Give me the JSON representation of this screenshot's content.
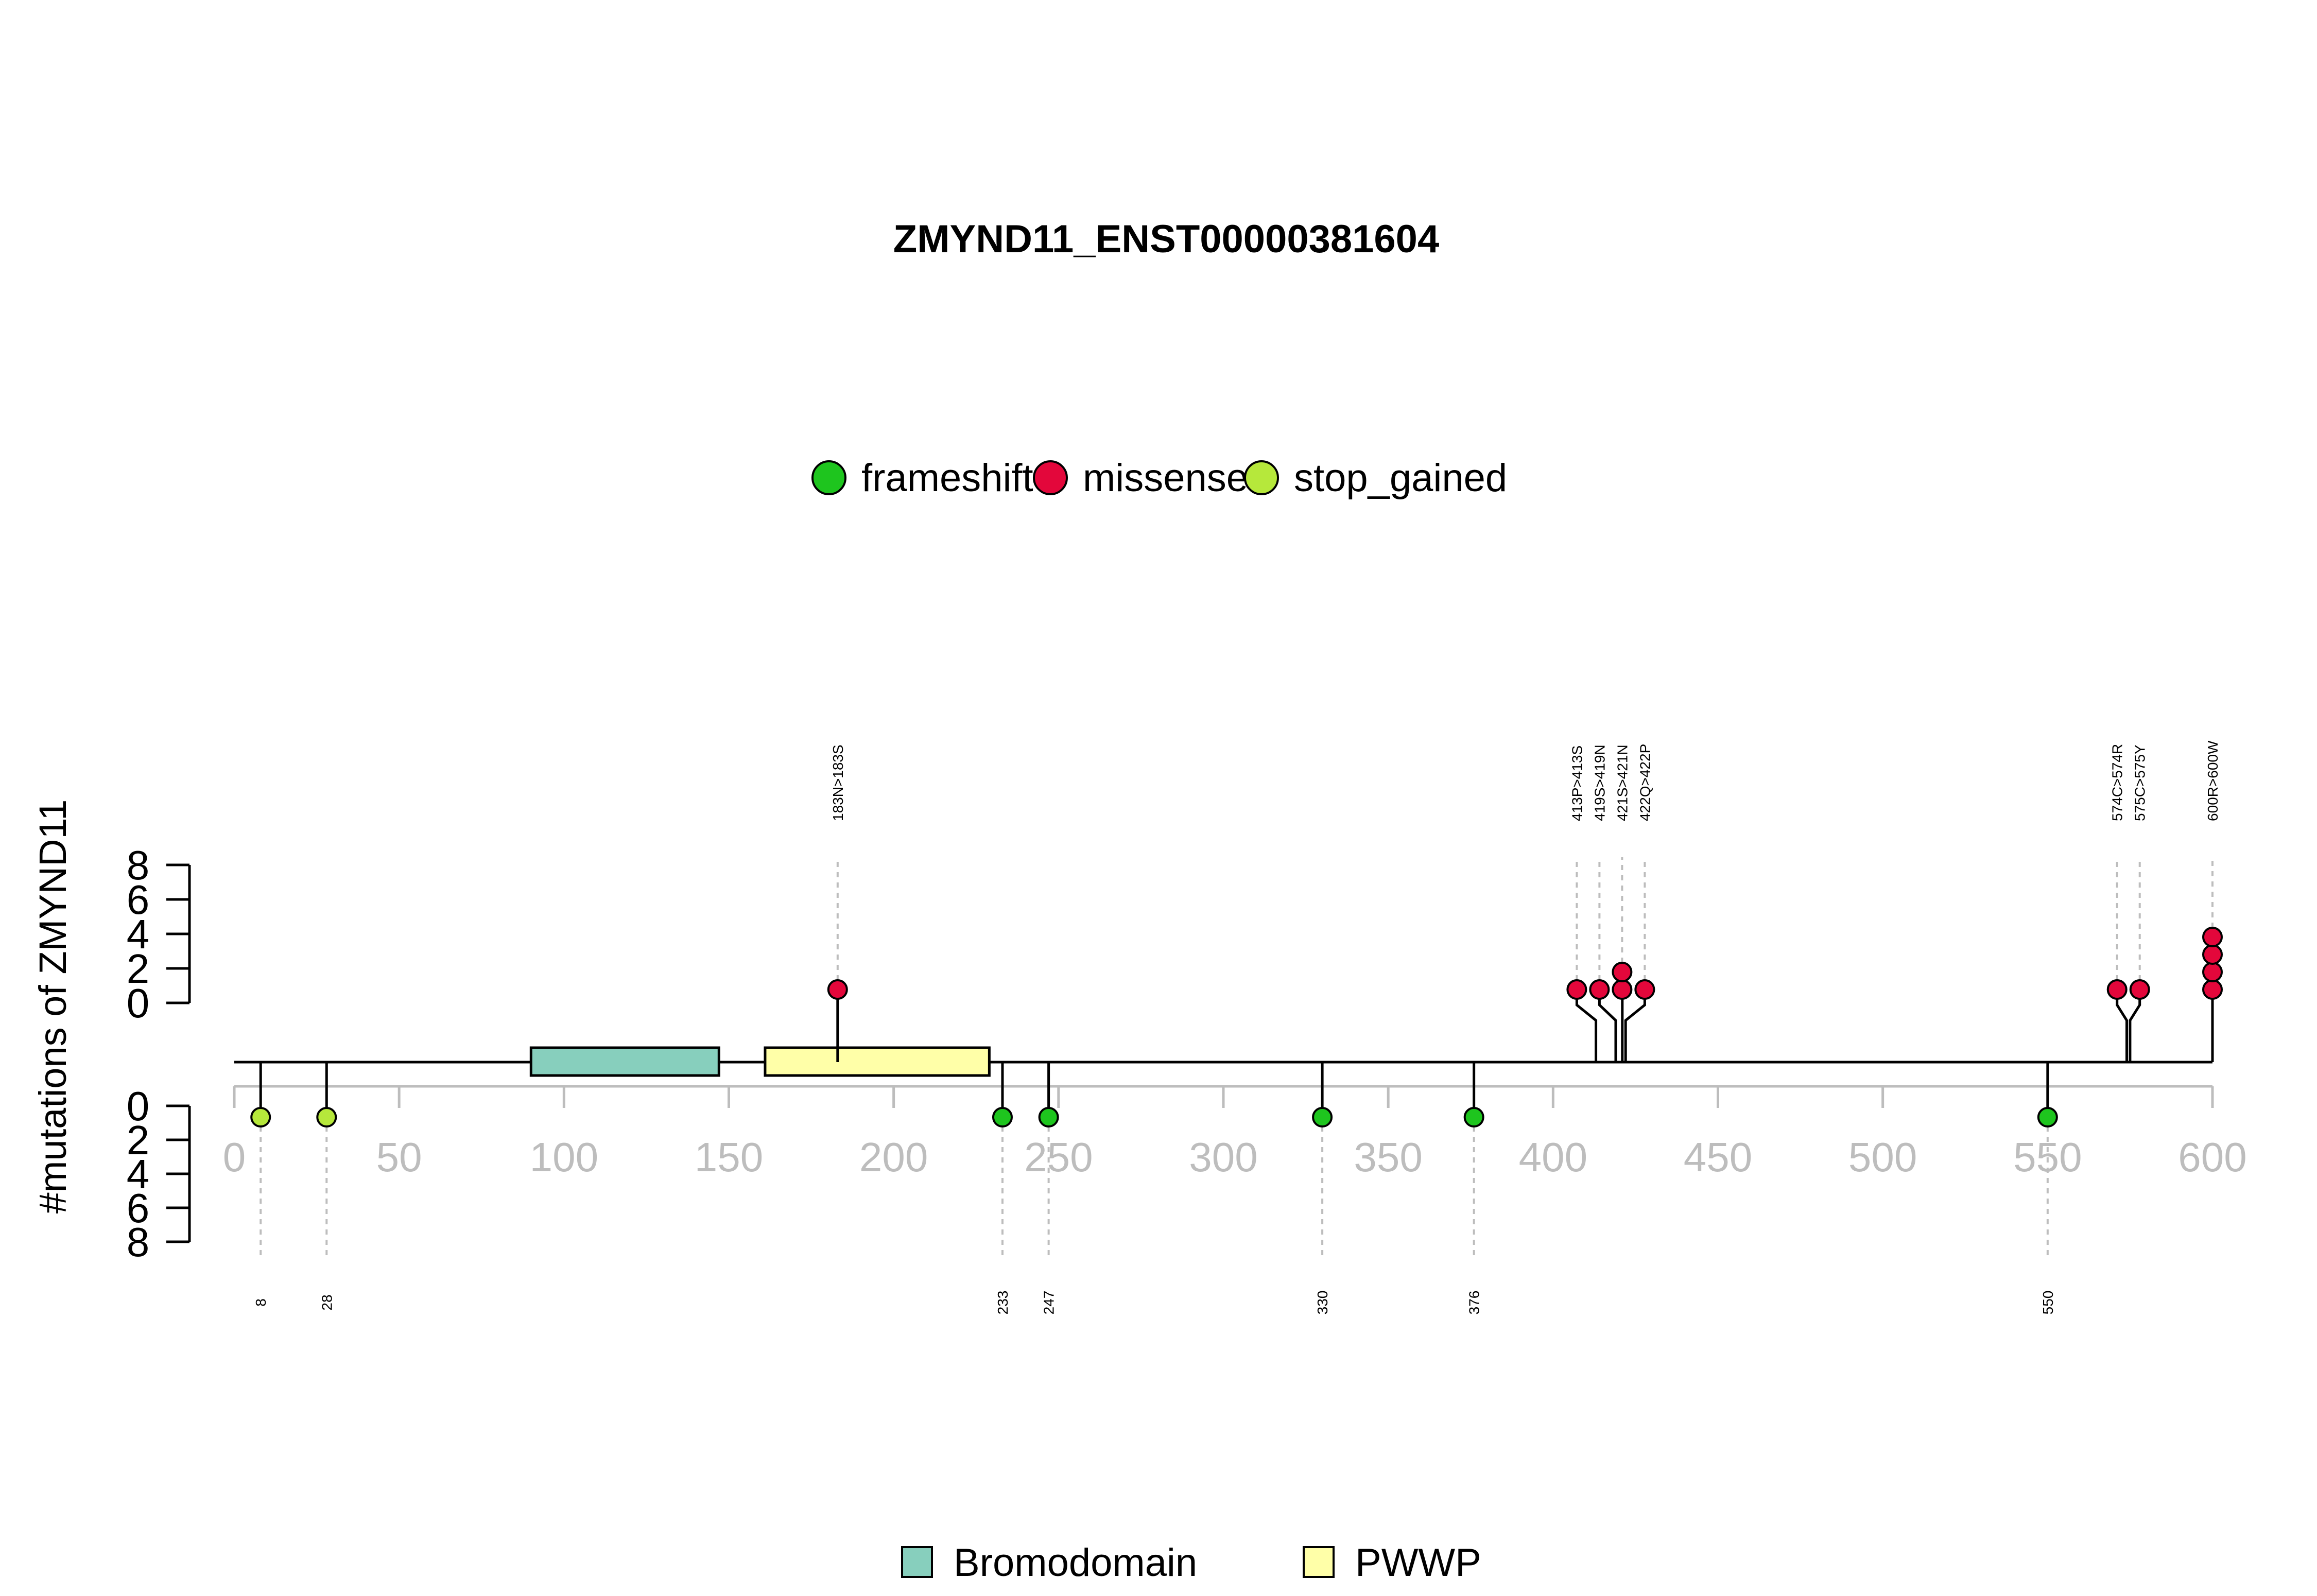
{
  "chart_data": {
    "type": "lollipop",
    "title": "ZMYND11_ENST00000381604",
    "ylabel": "#mutations of ZMYND11",
    "xlim": [
      0,
      600
    ],
    "x_ticks": [
      0,
      50,
      100,
      150,
      200,
      250,
      300,
      350,
      400,
      450,
      500,
      550,
      600
    ],
    "y_ticks_upper": [
      0,
      2,
      4,
      6,
      8
    ],
    "y_ticks_lower": [
      0,
      2,
      4,
      6,
      8
    ],
    "legend_top": {
      "placement": "top-center",
      "items": [
        {
          "name": "frameshift",
          "color": "#1ec51e"
        },
        {
          "name": "missense",
          "color": "#e3073b"
        },
        {
          "name": "stop_gained",
          "color": "#b6e83b"
        }
      ]
    },
    "legend_bottom": {
      "placement": "bottom-center",
      "items": [
        {
          "name": "Bromodomain",
          "color": "#87cfbd"
        },
        {
          "name": "PWWP",
          "color": "#ffffa8"
        }
      ]
    },
    "domains": [
      {
        "name": "Bromodomain",
        "start": 90,
        "end": 147,
        "color": "#87cfbd"
      },
      {
        "name": "PWWP",
        "start": 161,
        "end": 229,
        "color": "#ffffa8"
      }
    ],
    "upper_mutations": [
      {
        "label": "183N>183S",
        "position": 183,
        "count": 1,
        "type": "missense"
      },
      {
        "label": "413P>413S",
        "position": 413,
        "count": 1,
        "type": "missense"
      },
      {
        "label": "419S>419N",
        "position": 419,
        "count": 1,
        "type": "missense"
      },
      {
        "label": "421S>421N",
        "position": 421,
        "count": 2,
        "type": "missense"
      },
      {
        "label": "422Q>422P",
        "position": 422,
        "count": 1,
        "type": "missense"
      },
      {
        "label": "574C>574R",
        "position": 574,
        "count": 1,
        "type": "missense"
      },
      {
        "label": "575C>575Y",
        "position": 575,
        "count": 1,
        "type": "missense"
      },
      {
        "label": "600R>600W",
        "position": 600,
        "count": 4,
        "type": "missense"
      }
    ],
    "lower_mutations": [
      {
        "label": "8",
        "position": 8,
        "count": 1,
        "type": "stop_gained"
      },
      {
        "label": "28",
        "position": 28,
        "count": 1,
        "type": "stop_gained"
      },
      {
        "label": "233",
        "position": 233,
        "count": 1,
        "type": "frameshift"
      },
      {
        "label": "247",
        "position": 247,
        "count": 1,
        "type": "frameshift"
      },
      {
        "label": "330",
        "position": 330,
        "count": 1,
        "type": "frameshift"
      },
      {
        "label": "376",
        "position": 376,
        "count": 1,
        "type": "frameshift"
      },
      {
        "label": "550",
        "position": 550,
        "count": 1,
        "type": "frameshift"
      }
    ]
  }
}
